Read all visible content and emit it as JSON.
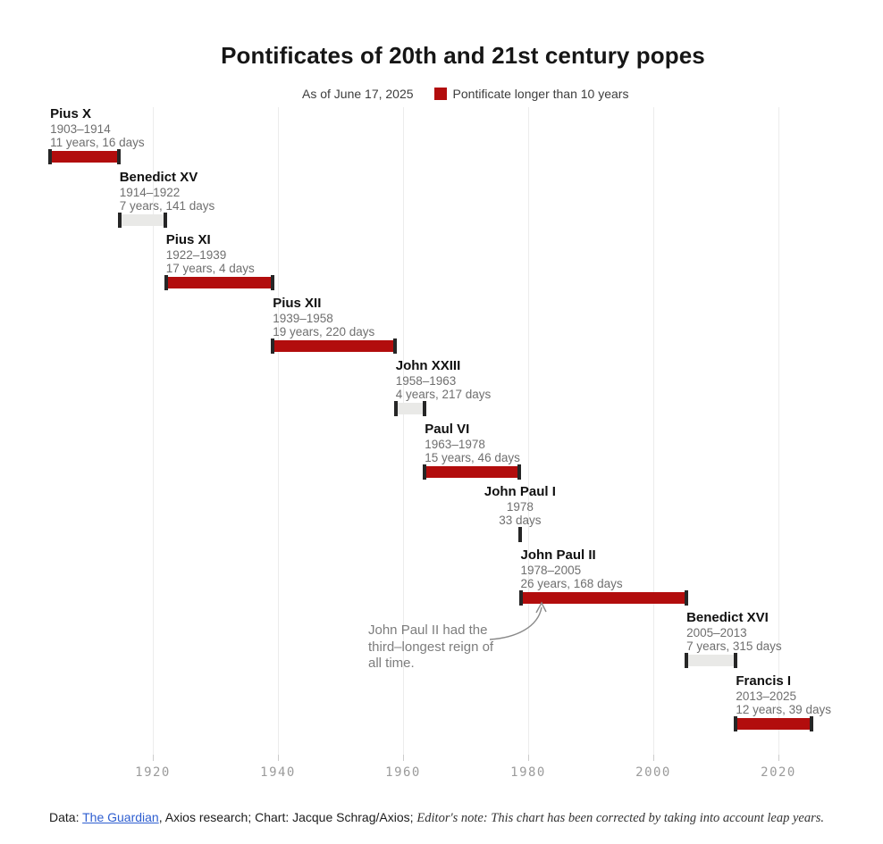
{
  "title": "Pontificates of 20th and 21st century popes",
  "legend": {
    "as_of": "As of June 17, 2025",
    "item_label": "Pontificate longer than 10 years",
    "item_color": "#b20d0d"
  },
  "chart_data": {
    "type": "bar",
    "subtype": "timeline-gantt",
    "title": "Pontificates of 20th and 21st century popes",
    "x_axis": {
      "ticks": [
        1920,
        1940,
        1960,
        1980,
        2000,
        2020
      ],
      "range": [
        1900,
        2026
      ],
      "grid": true
    },
    "colors": {
      "long_reign": "#b20d0d",
      "short_reign": "#e9e9e7",
      "bar_cap": "#262626"
    },
    "legend": [
      {
        "label": "Pontificate longer than 10 years",
        "color": "#b20d0d"
      }
    ],
    "popes": [
      {
        "name": "Pius X",
        "years": "1903–1914",
        "duration": "11 years, 16 days",
        "start": 1903.59,
        "end": 1914.63,
        "long_reign": true,
        "label_align": "left"
      },
      {
        "name": "Benedict XV",
        "years": "1914–1922",
        "duration": "7 years, 141 days",
        "start": 1914.67,
        "end": 1922.06,
        "long_reign": false,
        "label_align": "left"
      },
      {
        "name": "Pius XI",
        "years": "1922–1939",
        "duration": "17 years, 4 days",
        "start": 1922.1,
        "end": 1939.11,
        "long_reign": true,
        "label_align": "left"
      },
      {
        "name": "Pius XII",
        "years": "1939–1958",
        "duration": "19 years, 220 days",
        "start": 1939.17,
        "end": 1958.77,
        "long_reign": true,
        "label_align": "left"
      },
      {
        "name": "John XXIII",
        "years": "1958–1963",
        "duration": "4 years, 217 days",
        "start": 1958.82,
        "end": 1963.42,
        "long_reign": false,
        "label_align": "left"
      },
      {
        "name": "Paul VI",
        "years": "1963–1978",
        "duration": "15 years, 46 days",
        "start": 1963.47,
        "end": 1978.6,
        "long_reign": true,
        "label_align": "left"
      },
      {
        "name": "John Paul I",
        "years": "1978",
        "duration": "33 days",
        "start": 1978.65,
        "end": 1978.74,
        "long_reign": false,
        "label_align": "center"
      },
      {
        "name": "John Paul II",
        "years": "1978–2005",
        "duration": "26 years, 168 days",
        "start": 1978.79,
        "end": 2005.25,
        "long_reign": true,
        "label_align": "left"
      },
      {
        "name": "Benedict XVI",
        "years": "2005–2013",
        "duration": "7 years, 315 days",
        "start": 2005.3,
        "end": 2013.16,
        "long_reign": false,
        "label_align": "left"
      },
      {
        "name": "Francis I",
        "years": "2013–2025",
        "duration": "12 years, 39 days",
        "start": 2013.2,
        "end": 2025.3,
        "long_reign": true,
        "label_align": "left"
      }
    ],
    "annotation": {
      "text": "John Paul II had the\nthird–longest reign of\nall time.",
      "target_pope": "John Paul II"
    }
  },
  "footer": {
    "data_label": "Data: ",
    "source_link": "The Guardian",
    "sources_rest": ", Axios research; Chart: Jacque Schrag/Axios; ",
    "editors_note": "Editor's note: This chart has been corrected by taking into account leap years."
  }
}
